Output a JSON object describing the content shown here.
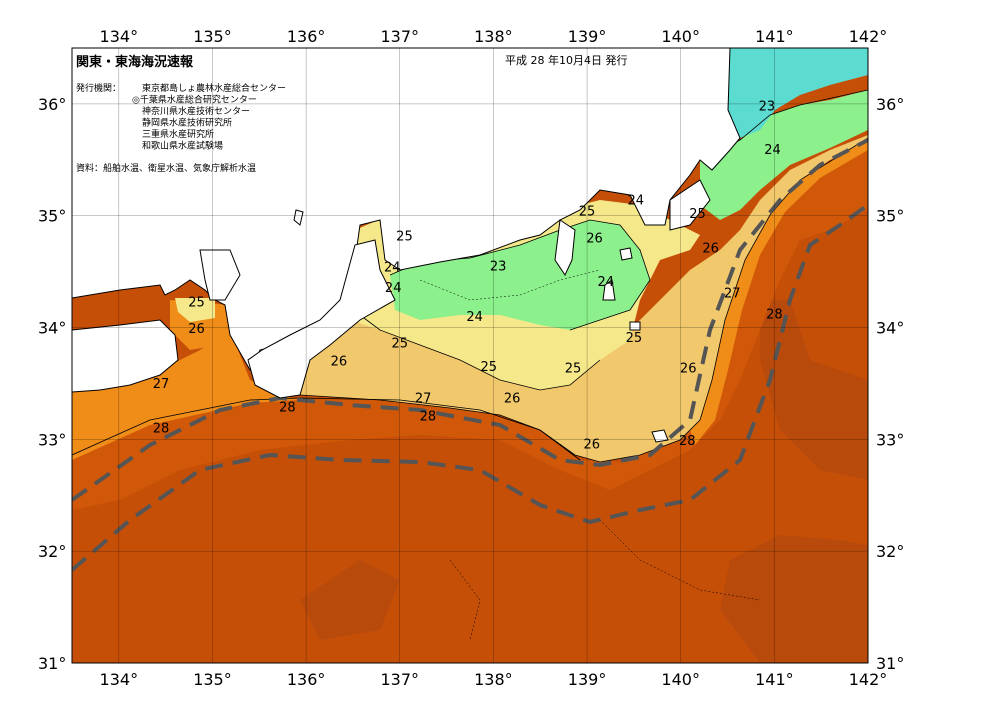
{
  "title": "関東・東海海況速報",
  "issue_date": "平成 28 年10月4日 発行",
  "issuers_label": "発行機関：",
  "issuers": [
    "東京都島しょ農林水産総合センター",
    "◎千葉県水産総合研究センター",
    "神奈川県水産技術センター",
    "静岡県水産技術研究所",
    "三重県水産研究所",
    "和歌山県水産試験場"
  ],
  "source_note": "資料：船舶水温、衛星水温、気象庁解析水温",
  "axes": {
    "lon_ticks": [
      "134°",
      "135°",
      "136°",
      "137°",
      "138°",
      "139°",
      "140°",
      "141°",
      "142°"
    ],
    "lat_ticks": [
      "36°",
      "35°",
      "34°",
      "33°",
      "32°",
      "31°"
    ],
    "lon_range": [
      133.5,
      142.0
    ],
    "lat_range": [
      31.0,
      36.5
    ]
  },
  "colors": {
    "t23": "#5cdcd0",
    "t24": "#8cf08c",
    "t25": "#f5e88a",
    "t26": "#f2c86c",
    "t27": "#f08c18",
    "t28": "#d05808",
    "t29": "#b84a0c",
    "land": "#ffffff",
    "kuroshio": "#555555"
  },
  "isotherm_labels": [
    {
      "text": "23",
      "lon": 140.92,
      "lat": 35.94
    },
    {
      "text": "24",
      "lon": 140.98,
      "lat": 35.55
    },
    {
      "text": "24",
      "lon": 139.52,
      "lat": 35.1
    },
    {
      "text": "25",
      "lon": 139.0,
      "lat": 35.0
    },
    {
      "text": "25",
      "lon": 140.18,
      "lat": 34.98
    },
    {
      "text": "26",
      "lon": 139.08,
      "lat": 34.76
    },
    {
      "text": "26",
      "lon": 140.32,
      "lat": 34.67
    },
    {
      "text": "25",
      "lon": 137.05,
      "lat": 34.78
    },
    {
      "text": "23",
      "lon": 138.05,
      "lat": 34.51
    },
    {
      "text": "24",
      "lon": 136.92,
      "lat": 34.5
    },
    {
      "text": "24",
      "lon": 136.93,
      "lat": 34.32
    },
    {
      "text": "24",
      "lon": 139.2,
      "lat": 34.37
    },
    {
      "text": "27",
      "lon": 140.55,
      "lat": 34.27
    },
    {
      "text": "28",
      "lon": 141.0,
      "lat": 34.08
    },
    {
      "text": "25",
      "lon": 134.83,
      "lat": 34.19
    },
    {
      "text": "24",
      "lon": 137.8,
      "lat": 34.06
    },
    {
      "text": "26",
      "lon": 134.83,
      "lat": 33.95
    },
    {
      "text": "25",
      "lon": 137.0,
      "lat": 33.82
    },
    {
      "text": "25",
      "lon": 139.5,
      "lat": 33.87
    },
    {
      "text": "26",
      "lon": 136.35,
      "lat": 33.66
    },
    {
      "text": "25",
      "lon": 137.95,
      "lat": 33.61
    },
    {
      "text": "25",
      "lon": 138.85,
      "lat": 33.6
    },
    {
      "text": "26",
      "lon": 140.08,
      "lat": 33.6
    },
    {
      "text": "27",
      "lon": 134.45,
      "lat": 33.46
    },
    {
      "text": "27",
      "lon": 137.25,
      "lat": 33.33
    },
    {
      "text": "26",
      "lon": 138.2,
      "lat": 33.33
    },
    {
      "text": "28",
      "lon": 135.8,
      "lat": 33.25
    },
    {
      "text": "28",
      "lon": 137.3,
      "lat": 33.17
    },
    {
      "text": "28",
      "lon": 134.45,
      "lat": 33.06
    },
    {
      "text": "26",
      "lon": 139.05,
      "lat": 32.92
    },
    {
      "text": "28",
      "lon": 140.07,
      "lat": 32.95
    }
  ]
}
